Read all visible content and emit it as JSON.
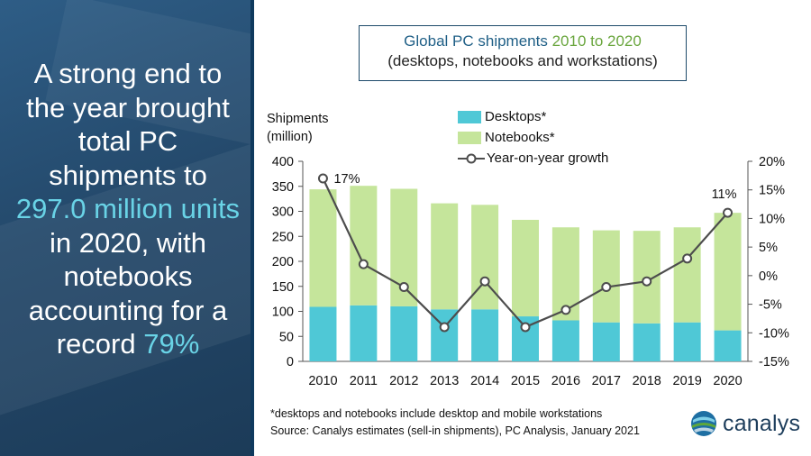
{
  "headline": {
    "pre": "A strong end to the year brought total PC shipments to ",
    "highlight1": "297.0 million units",
    "mid": " in 2020, with notebooks accounting for a record ",
    "highlight2": "79%"
  },
  "colors": {
    "desktops": "#4fc8d6",
    "notebooks": "#c5e59b",
    "growth_line": "#4d4d4d",
    "highlight": "#69d3e6",
    "title_blue": "#1f5f86",
    "title_green": "#6aa63e"
  },
  "footnote": {
    "line1": "*desktops and notebooks include desktop and mobile workstations",
    "line2": "Source: Canalys estimates (sell-in shipments), PC Analysis, January 2021"
  },
  "logo": {
    "text": "canalys",
    "icon": "canalys-globe-icon"
  },
  "chart_data": {
    "type": "bar",
    "stacked": true,
    "title": "Global PC shipments 2010 to 2020",
    "title_main": "Global PC shipments",
    "title_years": "2010 to 2020",
    "subtitle": "(desktops, notebooks and workstations)",
    "ylabel": "Shipments",
    "ylabel_unit": "(million)",
    "categories": [
      "2010",
      "2011",
      "2012",
      "2013",
      "2014",
      "2015",
      "2016",
      "2017",
      "2018",
      "2019",
      "2020"
    ],
    "ylim": [
      0,
      400
    ],
    "yticks": [
      0,
      50,
      100,
      150,
      200,
      250,
      300,
      350,
      400
    ],
    "y2lim": [
      -15,
      20
    ],
    "y2ticks": [
      "20%",
      "15%",
      "10%",
      "5%",
      "0%",
      "-5%",
      "-10%",
      "-15%"
    ],
    "y2tick_values": [
      20,
      15,
      10,
      5,
      0,
      -5,
      -10,
      -15
    ],
    "series": [
      {
        "name": "Desktops*",
        "values": [
          109,
          112,
          110,
          104,
          104,
          90,
          82,
          78,
          76,
          78,
          62
        ]
      },
      {
        "name": "Notebooks*",
        "values": [
          235,
          239,
          235,
          212,
          209,
          193,
          186,
          184,
          185,
          190,
          235
        ]
      }
    ],
    "line_series": {
      "name": "Year-on-year growth",
      "values": [
        17,
        2,
        -2,
        -9,
        -1,
        -9,
        -6,
        -2,
        -1,
        3,
        11
      ]
    },
    "annotations": [
      {
        "category": "2010",
        "text": "17%"
      },
      {
        "category": "2020",
        "text": "11%"
      }
    ],
    "legend": "top"
  }
}
